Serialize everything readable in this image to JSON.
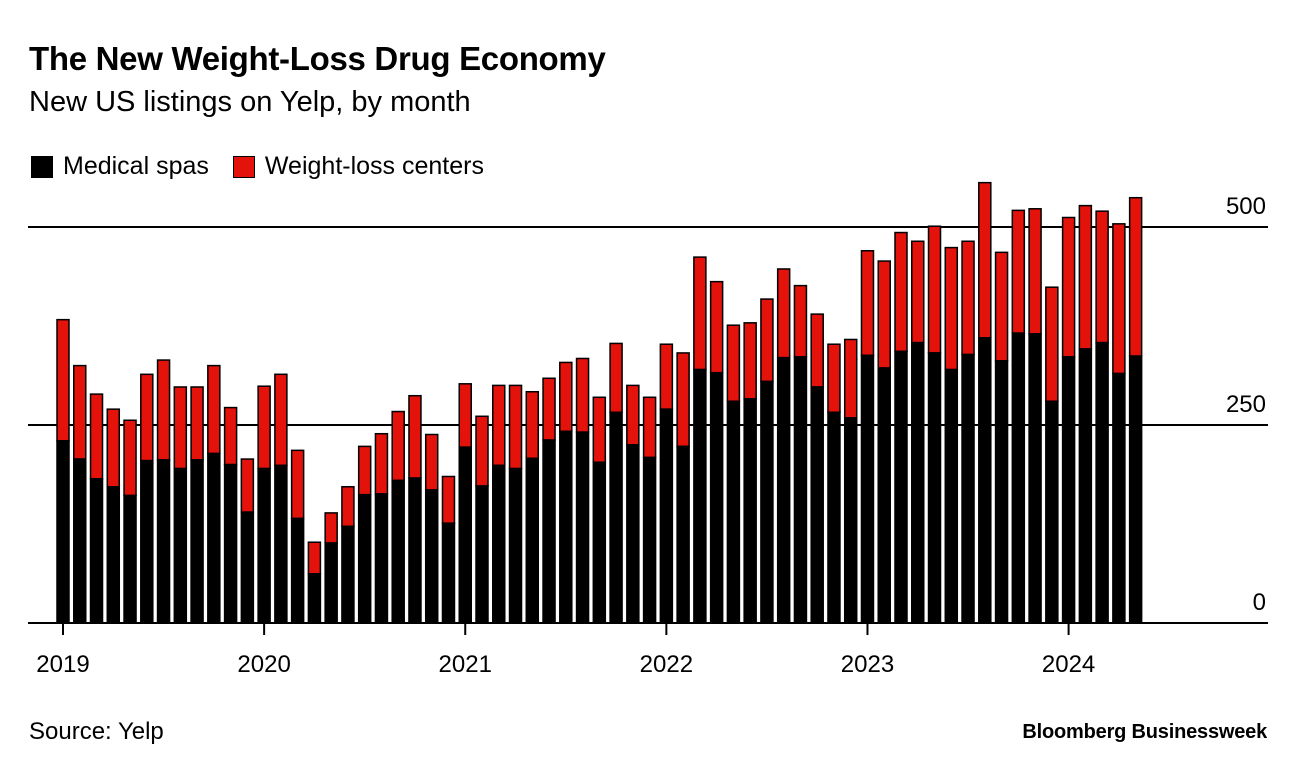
{
  "title": "The New Weight-Loss Drug Economy",
  "subtitle": "New US listings on Yelp, by month",
  "source": "Source: Yelp",
  "brand": "Bloomberg Businessweek",
  "colors": {
    "medical_spas": "#000000",
    "weight_loss_centers": "#e3120b"
  },
  "chart_data": {
    "type": "bar",
    "stacked": true,
    "title": "The New Weight-Loss Drug Economy",
    "subtitle": "New US listings on Yelp, by month",
    "xlabel": "",
    "ylabel": "",
    "ylim": [
      0,
      550
    ],
    "y_ticks": [
      {
        "value": 0,
        "label": "0"
      },
      {
        "value": 250,
        "label": "250"
      },
      {
        "value": 500,
        "label": "500"
      }
    ],
    "x_ticks": [
      "2019",
      "2020",
      "2021",
      "2022",
      "2023",
      "2024"
    ],
    "legend_position": "top-left",
    "grid": true,
    "categories": [
      "2019-01",
      "2019-02",
      "2019-03",
      "2019-04",
      "2019-05",
      "2019-06",
      "2019-07",
      "2019-08",
      "2019-09",
      "2019-10",
      "2019-11",
      "2019-12",
      "2020-01",
      "2020-02",
      "2020-03",
      "2020-04",
      "2020-05",
      "2020-06",
      "2020-07",
      "2020-08",
      "2020-09",
      "2020-10",
      "2020-11",
      "2020-12",
      "2021-01",
      "2021-02",
      "2021-03",
      "2021-04",
      "2021-05",
      "2021-06",
      "2021-07",
      "2021-08",
      "2021-09",
      "2021-10",
      "2021-11",
      "2021-12",
      "2022-01",
      "2022-02",
      "2022-03",
      "2022-04",
      "2022-05",
      "2022-06",
      "2022-07",
      "2022-08",
      "2022-09",
      "2022-10",
      "2022-11",
      "2022-12",
      "2023-01",
      "2023-02",
      "2023-03",
      "2023-04",
      "2023-05",
      "2023-06",
      "2023-07",
      "2023-08",
      "2023-09",
      "2023-10",
      "2023-11",
      "2023-12",
      "2024-01",
      "2024-02",
      "2024-03",
      "2024-04",
      "2024-05"
    ],
    "series": [
      {
        "name": "Medical spas",
        "values": [
          230,
          207,
          182,
          172,
          161,
          205,
          206,
          195,
          206,
          214,
          200,
          140,
          195,
          199,
          132,
          62,
          101,
          122,
          162,
          163,
          180,
          183,
          168,
          126,
          222,
          173,
          199,
          195,
          208,
          231,
          242,
          241,
          203,
          266,
          225,
          209,
          270,
          223,
          320,
          316,
          280,
          283,
          305,
          335,
          336,
          298,
          266,
          259,
          338,
          322,
          343,
          354,
          341,
          320,
          339,
          360,
          331,
          366,
          365,
          280,
          336,
          346,
          354,
          315,
          337
        ]
      },
      {
        "name": "Weight-loss centers",
        "values": [
          153,
          118,
          107,
          98,
          95,
          109,
          126,
          103,
          92,
          111,
          72,
          67,
          104,
          115,
          86,
          40,
          38,
          50,
          61,
          76,
          87,
          104,
          70,
          59,
          80,
          88,
          101,
          105,
          84,
          78,
          87,
          93,
          82,
          87,
          75,
          76,
          82,
          118,
          142,
          115,
          96,
          96,
          104,
          112,
          90,
          92,
          86,
          99,
          132,
          135,
          150,
          128,
          160,
          154,
          143,
          196,
          137,
          155,
          158,
          144,
          176,
          181,
          166,
          189,
          200
        ]
      }
    ]
  }
}
